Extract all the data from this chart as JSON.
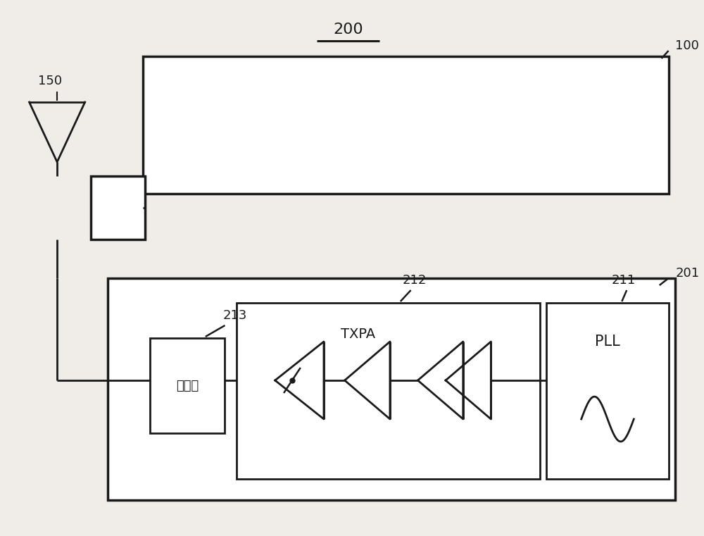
{
  "bg_color": "#f0ede8",
  "line_color": "#1a1a1a",
  "box_color": "#ffffff",
  "fig_width": 10.0,
  "fig_height": 7.61,
  "label_200": "200",
  "label_100": "100",
  "label_150": "150",
  "label_201": "201",
  "label_211": "211",
  "label_212": "212",
  "label_213": "213",
  "text_TXPA": "TXPA",
  "text_PLL": "PLL",
  "text_filter": "滤波器"
}
